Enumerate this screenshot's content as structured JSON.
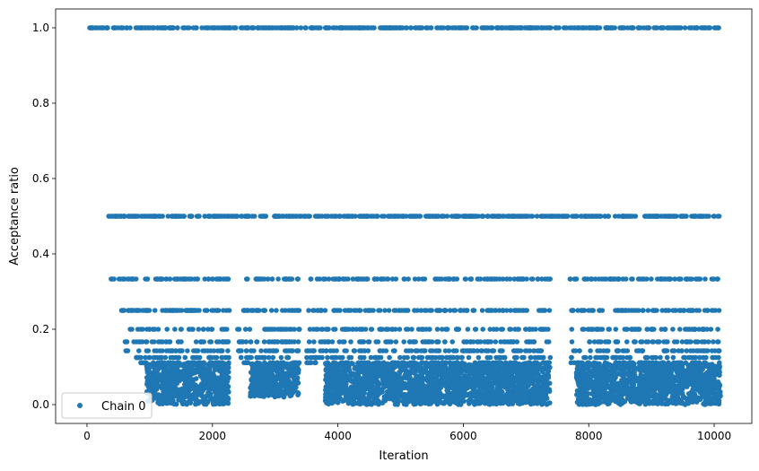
{
  "chart_data": {
    "type": "scatter",
    "xlabel": "Iteration",
    "ylabel": "Acceptance ratio",
    "xlim": [
      -500,
      10600
    ],
    "ylim": [
      -0.05,
      1.05
    ],
    "x_ticks": [
      0,
      2000,
      4000,
      6000,
      8000,
      10000
    ],
    "x_tick_labels": [
      "0",
      "2000",
      "4000",
      "6000",
      "8000",
      "10000"
    ],
    "y_ticks": [
      0.0,
      0.2,
      0.4,
      0.6,
      0.8,
      1.0
    ],
    "y_tick_labels": [
      "0.0",
      "0.2",
      "0.4",
      "0.6",
      "0.8",
      "1.0"
    ],
    "grid": false,
    "legend": {
      "position": "lower-left",
      "entries": [
        "Chain 0"
      ]
    },
    "series": [
      {
        "name": "Chain 0",
        "color": "#1f77b4",
        "marker": "circle",
        "levels": [
          {
            "y": 1.0,
            "x_range": [
              0,
              10100
            ]
          },
          {
            "y": 0.5,
            "x_range": [
              340,
              10100
            ]
          },
          {
            "y": 0.3333,
            "x_range": [
              370,
              10100
            ]
          },
          {
            "y": 0.25,
            "x_range": [
              550,
              10100
            ]
          },
          {
            "y": 0.2,
            "x_range": [
              650,
              10100
            ]
          },
          {
            "y": 0.1667,
            "x_range": [
              590,
              10100
            ]
          },
          {
            "y": 0.1429,
            "x_range": [
              600,
              10100
            ]
          },
          {
            "y": 0.125,
            "x_range": [
              760,
              10100
            ]
          },
          {
            "y": 0.1111,
            "x_range": [
              850,
              10100
            ]
          }
        ],
        "gaps": [
          [
            2270,
            2400
          ],
          [
            3400,
            3500
          ],
          [
            7390,
            7700
          ]
        ],
        "dense_clusters": [
          {
            "x_range": [
              950,
              2260
            ],
            "y_range": [
              0.0,
              0.11
            ]
          },
          {
            "x_range": [
              2600,
              3380
            ],
            "y_range": [
              0.02,
              0.11
            ]
          },
          {
            "x_range": [
              3800,
              7380
            ],
            "y_range": [
              0.0,
              0.11
            ]
          },
          {
            "x_range": [
              7800,
              10100
            ],
            "y_range": [
              0.0,
              0.11
            ]
          }
        ]
      }
    ]
  }
}
